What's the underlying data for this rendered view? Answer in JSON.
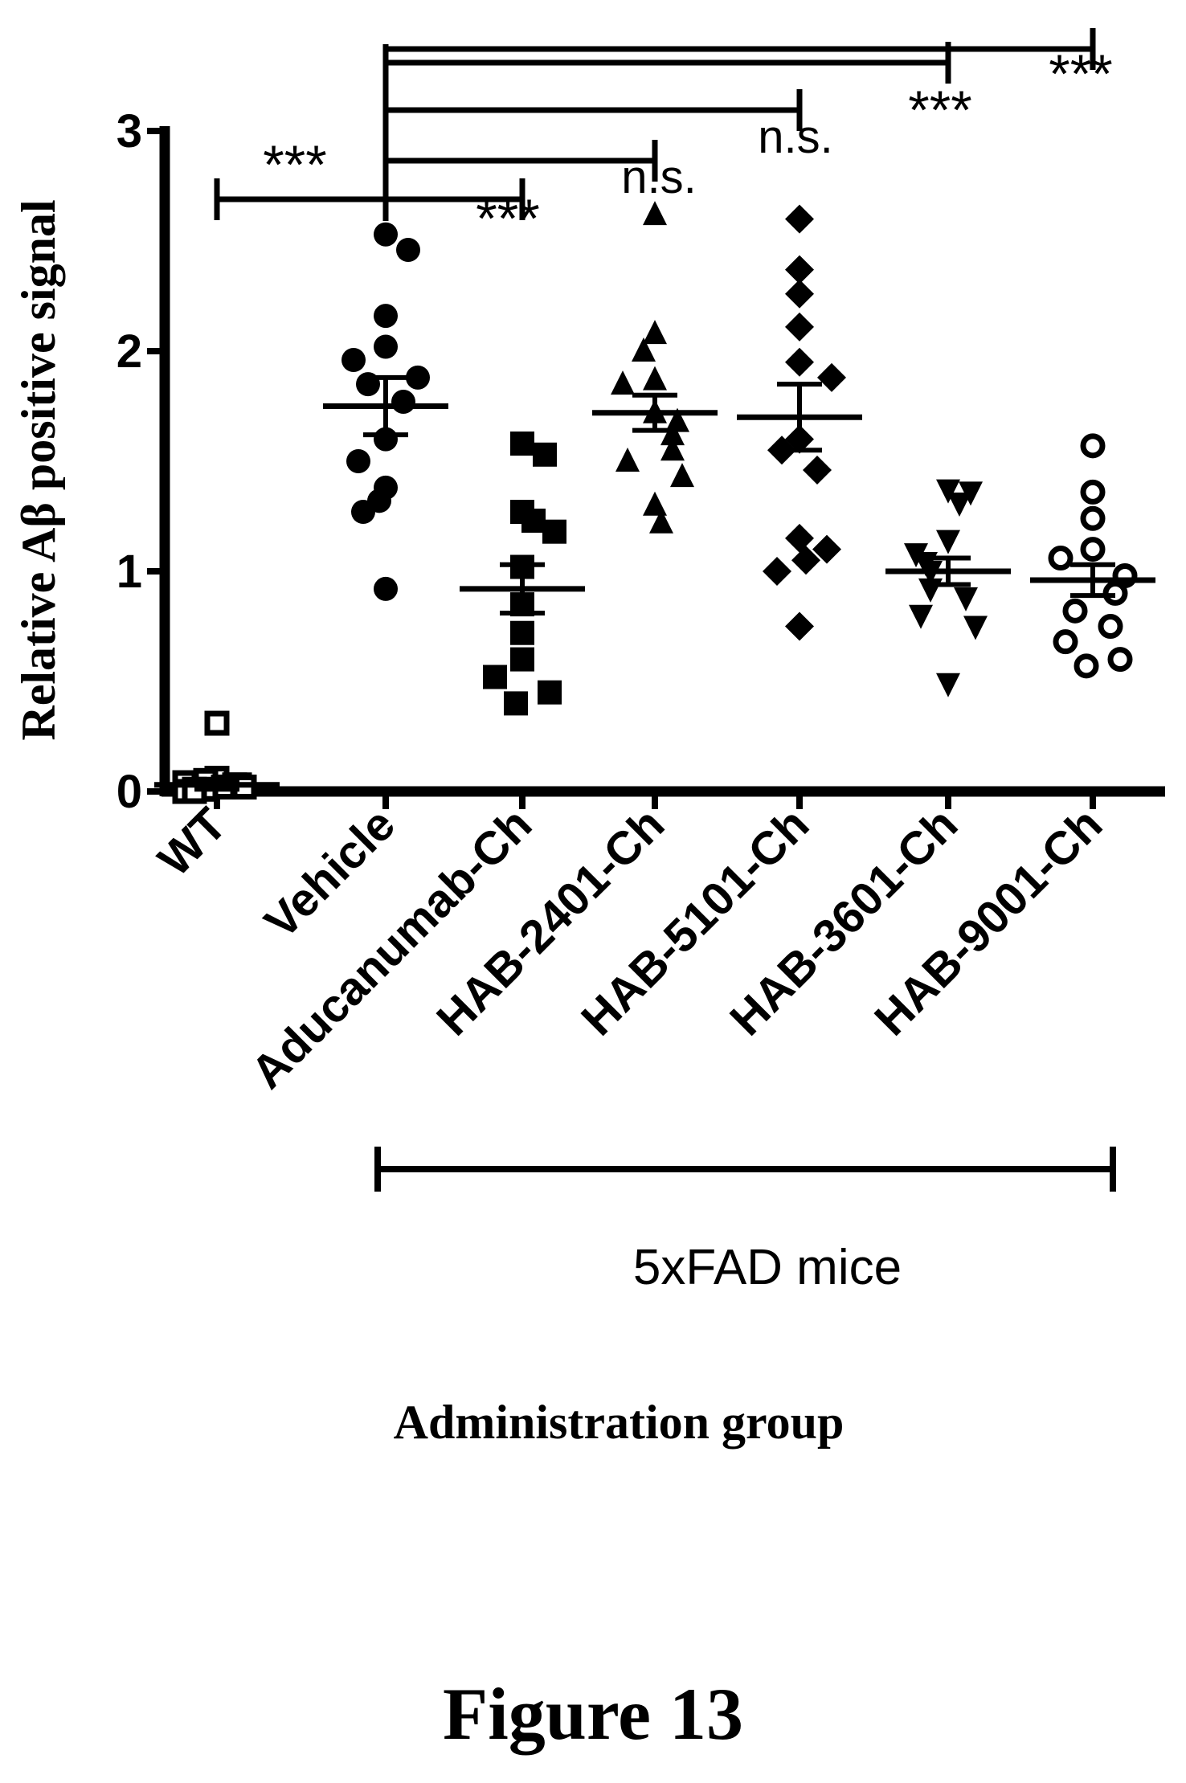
{
  "chart_data": {
    "type": "scatter",
    "title": "",
    "ylabel": "Relative Aβ positive signal",
    "xlabel": "Administration group",
    "ylim": [
      0,
      3
    ],
    "yticks": [
      "0",
      "1",
      "2",
      "3"
    ],
    "grid": false,
    "groups": [
      {
        "name": "WT",
        "marker": "open-square",
        "mean": 0.03,
        "sem": 0.02,
        "values": [
          0.31,
          0.05,
          0.03,
          0.02,
          0.01,
          0.0,
          0.04,
          0.02,
          0.06,
          0.01,
          0.0,
          0.03
        ]
      },
      {
        "name": "Vehicle",
        "marker": "filled-circle",
        "mean": 1.75,
        "sem": 0.13,
        "values": [
          2.53,
          2.46,
          2.16,
          2.02,
          1.96,
          1.88,
          1.85,
          1.77,
          1.6,
          1.5,
          1.38,
          1.32,
          1.27,
          0.92
        ]
      },
      {
        "name": "Aducanumab-Ch",
        "marker": "filled-square",
        "mean": 0.92,
        "sem": 0.11,
        "values": [
          1.58,
          1.53,
          1.27,
          1.23,
          1.18,
          1.02,
          0.85,
          0.72,
          0.6,
          0.52,
          0.45,
          0.4
        ]
      },
      {
        "name": "HAB-2401-Ch",
        "marker": "filled-triangle-up",
        "mean": 1.72,
        "sem": 0.08,
        "values": [
          2.62,
          2.08,
          2.0,
          1.87,
          1.85,
          1.72,
          1.68,
          1.62,
          1.55,
          1.5,
          1.43,
          1.3,
          1.22
        ]
      },
      {
        "name": "HAB-5101-Ch",
        "marker": "filled-diamond",
        "mean": 1.7,
        "sem": 0.15,
        "values": [
          2.6,
          2.37,
          2.26,
          2.11,
          1.95,
          1.88,
          1.6,
          1.55,
          1.46,
          1.15,
          1.1,
          1.05,
          1.0,
          0.75
        ]
      },
      {
        "name": "HAB-3601-Ch",
        "marker": "filled-triangle-down",
        "mean": 1.0,
        "sem": 0.06,
        "values": [
          1.37,
          1.36,
          1.31,
          1.14,
          1.08,
          1.04,
          1.0,
          0.92,
          0.88,
          0.8,
          0.75,
          0.49
        ]
      },
      {
        "name": "HAB-9001-Ch",
        "marker": "open-circle",
        "mean": 0.96,
        "sem": 0.07,
        "values": [
          1.57,
          1.36,
          1.24,
          1.1,
          1.06,
          0.98,
          0.9,
          0.82,
          0.75,
          0.68,
          0.6,
          0.57
        ]
      }
    ],
    "comparisons": [
      {
        "from": "WT",
        "to": "Vehicle",
        "label": "***"
      },
      {
        "from": "Vehicle",
        "to": "Aducanumab-Ch",
        "label": "***"
      },
      {
        "from": "Vehicle",
        "to": "HAB-2401-Ch",
        "label": "n.s."
      },
      {
        "from": "Vehicle",
        "to": "HAB-5101-Ch",
        "label": "n.s."
      },
      {
        "from": "Vehicle",
        "to": "HAB-3601-Ch",
        "label": "***"
      },
      {
        "from": "Vehicle",
        "to": "HAB-9001-Ch",
        "label": "***"
      }
    ],
    "bracket": {
      "label": "5xFAD mice",
      "from": "Vehicle",
      "to": "HAB-9001-Ch"
    }
  },
  "figure_caption": "Figure 13"
}
